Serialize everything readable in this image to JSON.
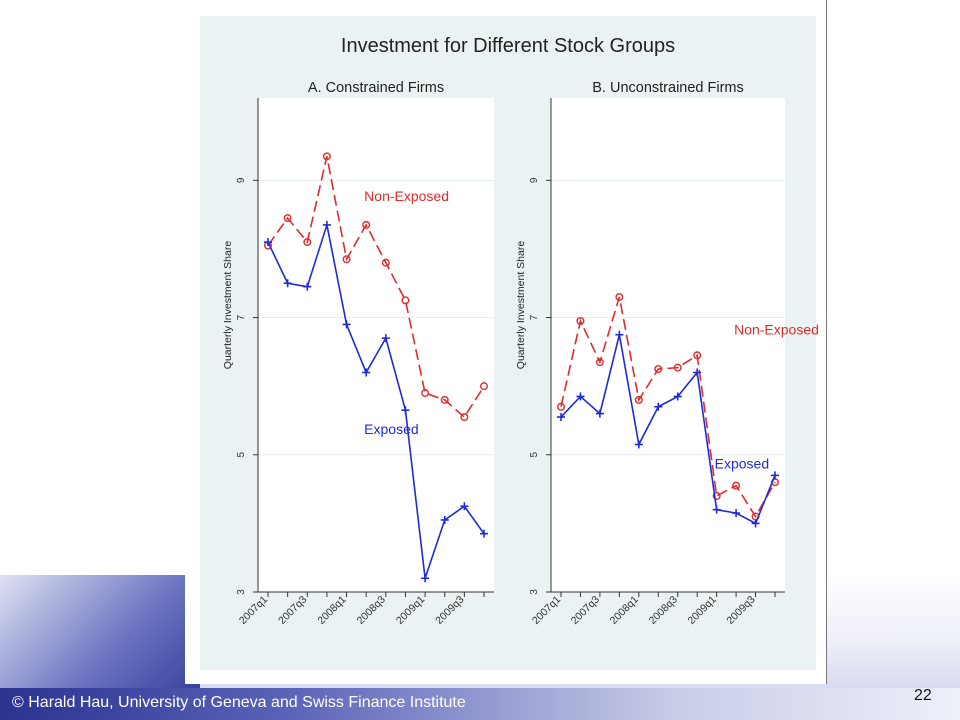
{
  "slide": {
    "footer_text": "© Harald Hau, University of Geneva and Swiss Finance Institute",
    "page_number": "22",
    "colors": {
      "footer_dark": "#2b3290",
      "plot_bg": "#eaf2f3",
      "exposed": "#1f2ad6",
      "non_exposed": "#e02b2b"
    }
  },
  "figure": {
    "title": "Investment for Different Stock Groups"
  },
  "chart_data": [
    {
      "type": "line",
      "title": "A. Constrained Firms",
      "ylabel": "Quarterly Investment Share",
      "xlabel": "",
      "ylim": [
        3,
        10.2
      ],
      "yticks": [
        3,
        5,
        7,
        9
      ],
      "x": [
        "2007q1",
        "2007q2",
        "2007q3",
        "2007q4",
        "2008q1",
        "2008q2",
        "2008q3",
        "2008q4",
        "2009q1",
        "2009q2",
        "2009q3",
        "2009q4"
      ],
      "xtick_labels": [
        "2007q1",
        "",
        "2007q3",
        "",
        "2008q1",
        "",
        "2008q3",
        "",
        "2009q1",
        "",
        "2009q3",
        ""
      ],
      "grid": true,
      "series": [
        {
          "name": "Non-Exposed",
          "marker": "circle",
          "dash": true,
          "values": [
            8.05,
            8.45,
            8.1,
            9.35,
            7.85,
            8.35,
            7.8,
            7.25,
            5.9,
            5.8,
            5.55,
            6.0
          ]
        },
        {
          "name": "Exposed",
          "marker": "plus",
          "dash": false,
          "values": [
            8.1,
            7.5,
            7.45,
            8.35,
            6.9,
            6.2,
            6.7,
            5.65,
            3.2,
            4.05,
            4.25,
            3.85
          ]
        }
      ],
      "annotations": [
        {
          "text": "Non-Exposed",
          "series": "Non-Exposed",
          "x": "2008q2",
          "y": 8.7
        },
        {
          "text": "Exposed",
          "series": "Exposed",
          "x": "2008q2",
          "y": 5.3
        }
      ]
    },
    {
      "type": "line",
      "title": "B. Unconstrained Firms",
      "ylabel": "Quarterly Investment Share",
      "xlabel": "",
      "ylim": [
        3,
        10.2
      ],
      "yticks": [
        3,
        5,
        7,
        9
      ],
      "x": [
        "2007q1",
        "2007q2",
        "2007q3",
        "2007q4",
        "2008q1",
        "2008q2",
        "2008q3",
        "2008q4",
        "2009q1",
        "2009q2",
        "2009q3",
        "2009q4"
      ],
      "xtick_labels": [
        "2007q1",
        "",
        "2007q3",
        "",
        "2008q1",
        "",
        "2008q3",
        "",
        "2009q1",
        "",
        "2009q3",
        ""
      ],
      "grid": true,
      "series": [
        {
          "name": "Non-Exposed",
          "marker": "circle",
          "dash": true,
          "values": [
            5.7,
            6.95,
            6.35,
            7.3,
            5.8,
            6.25,
            6.27,
            6.45,
            4.4,
            4.55,
            4.1,
            4.6
          ]
        },
        {
          "name": "Exposed",
          "marker": "plus",
          "dash": false,
          "values": [
            5.55,
            5.85,
            5.6,
            6.75,
            5.15,
            5.7,
            5.85,
            6.2,
            4.2,
            4.15,
            4.0,
            4.7
          ]
        }
      ],
      "annotations": [
        {
          "text": "Non-Exposed",
          "series": "Non-Exposed",
          "x": "2009q2",
          "y": 6.75
        },
        {
          "text": "Exposed",
          "series": "Exposed",
          "x": "2009q1",
          "y": 4.8
        }
      ]
    }
  ]
}
